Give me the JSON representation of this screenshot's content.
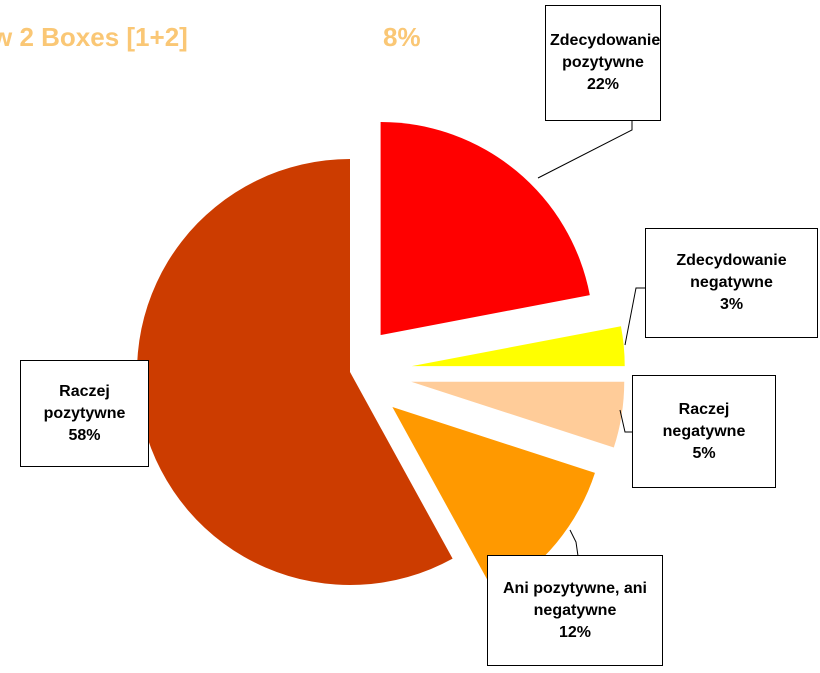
{
  "chart_data": {
    "type": "pie",
    "annotations": [
      {
        "text": "w 2 Boxes [1+2]"
      },
      {
        "text": "8%"
      }
    ],
    "categories": [
      "Zdecydowanie pozytywne",
      "Zdecydowanie negatywne",
      "Raczej negatywne",
      "Ani pozytywne, ani negatywne",
      "Raczej pozytywne"
    ],
    "values": [
      22,
      3,
      5,
      12,
      58
    ],
    "value_labels": [
      "22%",
      "3%",
      "5%",
      "12%",
      "58%"
    ],
    "colors": [
      "#ff0000",
      "#ffff00",
      "#ffcc99",
      "#ff9900",
      "#cc3c00"
    ]
  }
}
